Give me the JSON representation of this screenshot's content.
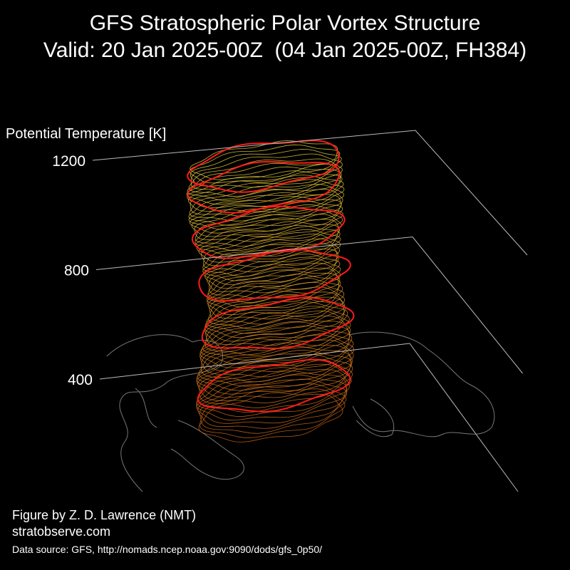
{
  "chart_data": {
    "type": "vortex3d",
    "title": "GFS Stratospheric Polar Vortex Structure",
    "subtitle": "Valid: 20 Jan 2025-00Z  (04 Jan 2025-00Z, FH384)",
    "y_label": "Potential Temperature [K]",
    "ylim": [
      400,
      1200
    ],
    "yticks": [
      400,
      800,
      1200
    ],
    "credit": "Figure by Z. D. Lawrence (NMT)",
    "website": "stratobserve.com",
    "source": "Data source: GFS, http://nomads.ncep.noaa.gov:9090/dods/gfs_0p50/"
  }
}
